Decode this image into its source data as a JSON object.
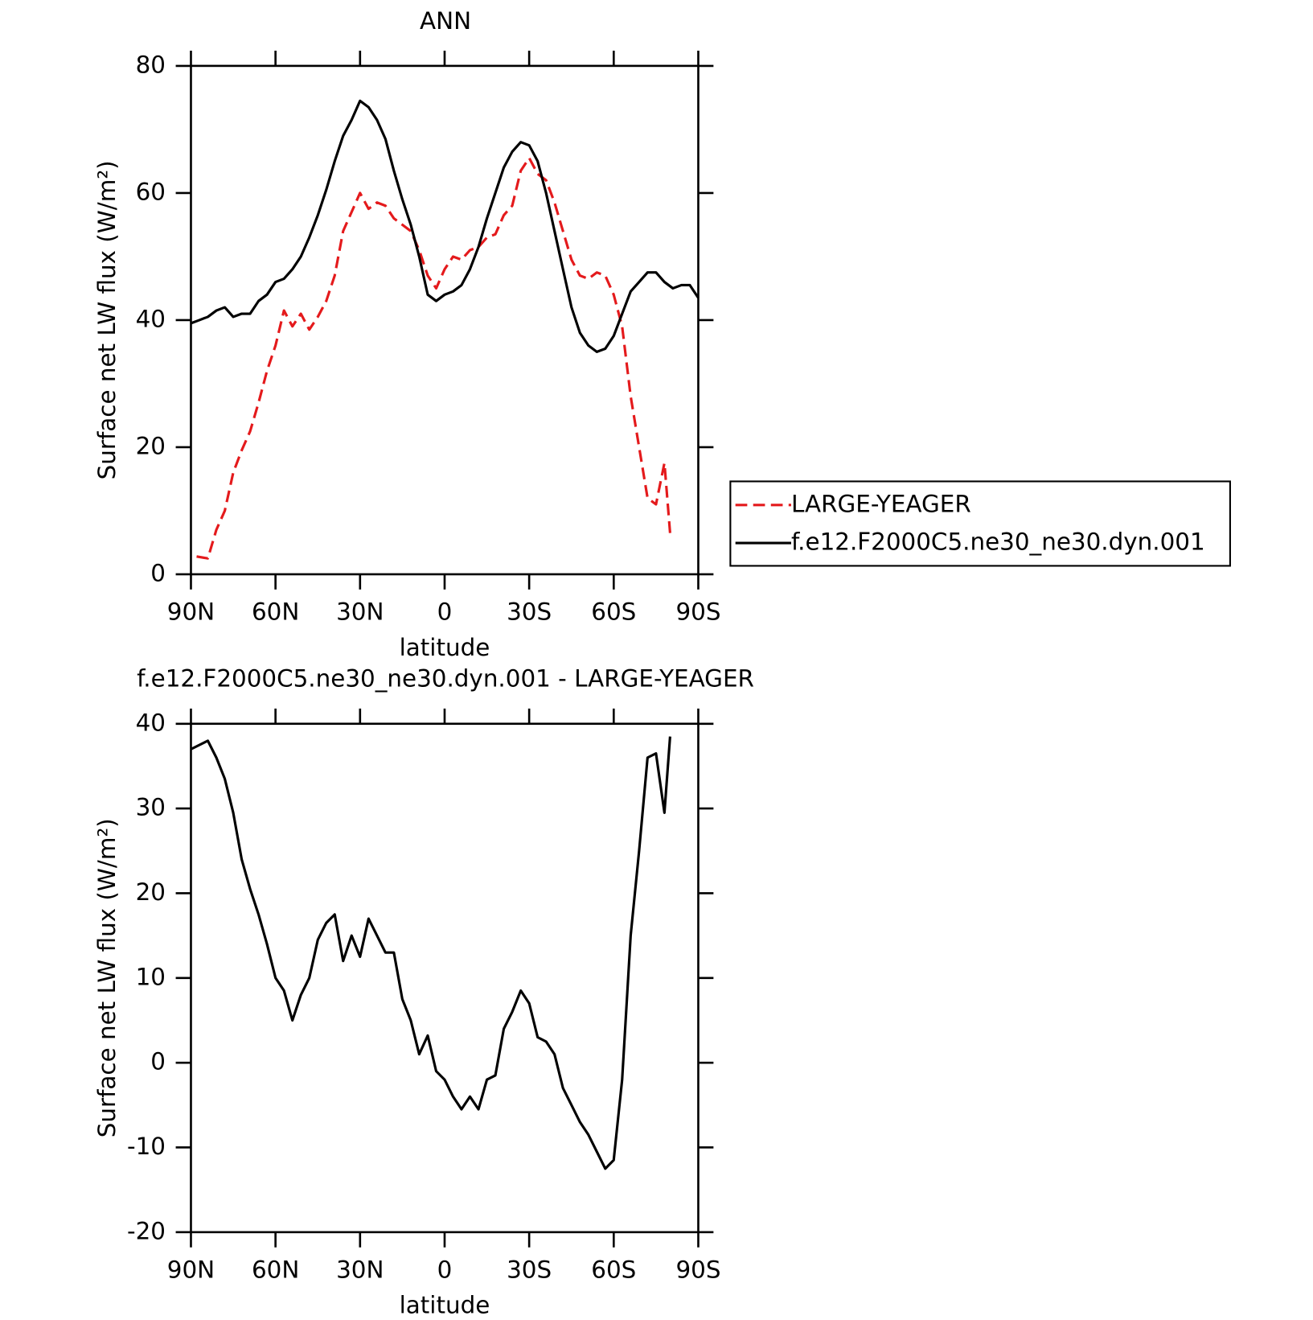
{
  "chart_data": [
    {
      "type": "line",
      "title": "ANN",
      "xlabel": "latitude",
      "ylabel": "Surface net LW flux (W/m²)",
      "xlim": [
        90,
        -90
      ],
      "ylim": [
        0,
        80
      ],
      "xticks": [
        {
          "value": 90,
          "label": "90N"
        },
        {
          "value": 60,
          "label": "60N"
        },
        {
          "value": 30,
          "label": "30N"
        },
        0,
        {
          "value": -30,
          "label": "30S"
        },
        {
          "value": -60,
          "label": "60S"
        },
        {
          "value": -90,
          "label": "90S"
        }
      ],
      "yticks": [
        0,
        20,
        40,
        60,
        80
      ],
      "legend": "right",
      "series": [
        {
          "name": "LARGE-YEAGER",
          "color": "#e41a1c",
          "dash": true,
          "x": [
            88,
            84,
            81,
            78,
            75,
            72,
            69,
            66,
            63,
            60,
            57,
            54,
            51,
            48,
            45,
            42,
            39,
            36,
            33,
            30,
            27,
            24,
            21,
            18,
            15,
            12,
            9,
            6,
            3,
            0,
            -3,
            -6,
            -9,
            -12,
            -15,
            -18,
            -21,
            -24,
            -27,
            -30,
            -33,
            -36,
            -39,
            -42,
            -45,
            -48,
            -51,
            -54,
            -57,
            -60,
            -63,
            -66,
            -69,
            -72,
            -75,
            -78,
            -80
          ],
          "values": [
            2.8,
            2.5,
            7,
            10,
            16,
            19.5,
            22.5,
            27,
            32,
            36,
            41.5,
            39,
            41,
            38.5,
            40.5,
            43,
            47,
            54,
            57,
            60,
            57.5,
            58.5,
            58,
            56,
            55,
            54,
            51,
            47,
            45,
            48,
            50,
            49.5,
            51,
            51.5,
            53,
            53.5,
            56.5,
            58,
            63.5,
            65.5,
            63,
            62,
            58.5,
            54,
            49.5,
            47,
            46.5,
            47.5,
            47,
            44,
            39,
            28,
            20,
            12,
            11,
            17.5,
            6.5
          ]
        },
        {
          "name": "f.e12.F2000C5.ne30_ne30.dyn.001",
          "color": "#000000",
          "dash": false,
          "x": [
            90,
            87,
            84,
            81,
            78,
            75,
            72,
            69,
            66,
            63,
            60,
            57,
            54,
            51,
            48,
            45,
            42,
            39,
            36,
            33,
            30,
            27,
            24,
            21,
            18,
            15,
            12,
            9,
            6,
            3,
            0,
            -3,
            -6,
            -9,
            -12,
            -15,
            -18,
            -21,
            -24,
            -27,
            -30,
            -33,
            -36,
            -39,
            -42,
            -45,
            -48,
            -51,
            -54,
            -57,
            -60,
            -63,
            -66,
            -69,
            -72,
            -75,
            -78,
            -81,
            -84,
            -87,
            -90
          ],
          "values": [
            39.5,
            40,
            40.5,
            41.5,
            42,
            40.5,
            41,
            41,
            43,
            44,
            46,
            46.5,
            48,
            50,
            53,
            56.5,
            60.5,
            65,
            69,
            71.5,
            74.5,
            73.5,
            71.5,
            68.5,
            63.5,
            59,
            55,
            50,
            44,
            43,
            44,
            44.5,
            45.5,
            48,
            51.5,
            56,
            60,
            64,
            66.5,
            68,
            67.5,
            65,
            60,
            54,
            48,
            42,
            38,
            36,
            35,
            35.5,
            37.5,
            41,
            44.5,
            46,
            47.5,
            47.5,
            46,
            45,
            45.5,
            45.5,
            43.5
          ]
        }
      ]
    },
    {
      "type": "line",
      "title": "f.e12.F2000C5.ne30_ne30.dyn.001 - LARGE-YEAGER",
      "xlabel": "latitude",
      "ylabel": "Surface net LW flux (W/m²)",
      "xlim": [
        90,
        -90
      ],
      "ylim": [
        -20,
        40
      ],
      "xticks": [
        {
          "value": 90,
          "label": "90N"
        },
        {
          "value": 60,
          "label": "60N"
        },
        {
          "value": 30,
          "label": "30N"
        },
        0,
        {
          "value": -30,
          "label": "30S"
        },
        {
          "value": -60,
          "label": "60S"
        },
        {
          "value": -90,
          "label": "90S"
        }
      ],
      "yticks": [
        -20,
        -10,
        0,
        10,
        20,
        30,
        40
      ],
      "series": [
        {
          "color": "#000000",
          "dash": false,
          "x": [
            90,
            84,
            81,
            78,
            75,
            72,
            69,
            66,
            63,
            60,
            57,
            54,
            51,
            48,
            45,
            42,
            39,
            36,
            33,
            30,
            27,
            24,
            21,
            18,
            15,
            12,
            9,
            6,
            3,
            0,
            -3,
            -6,
            -9,
            -12,
            -15,
            -18,
            -21,
            -24,
            -27,
            -30,
            -33,
            -36,
            -39,
            -42,
            -45,
            -48,
            -51,
            -54,
            -57,
            -60,
            -63,
            -66,
            -69,
            -72,
            -75,
            -78,
            -80
          ],
          "values": [
            37,
            38,
            36,
            33.5,
            29.5,
            24,
            20.5,
            17.5,
            14,
            10,
            8.5,
            5,
            8,
            10,
            14.5,
            16.5,
            17.5,
            12,
            15,
            12.5,
            17,
            15,
            13,
            13,
            7.5,
            5,
            1,
            3.2,
            -1,
            -2,
            -4,
            -5.5,
            -4,
            -5.5,
            -2,
            -1.5,
            4,
            6,
            8.5,
            7,
            3,
            2.5,
            1,
            -3,
            -5,
            -7,
            -8.5,
            -10.5,
            -12.5,
            -11.5,
            -2,
            15,
            25,
            36,
            36.5,
            29.5,
            38.5
          ]
        }
      ]
    }
  ]
}
